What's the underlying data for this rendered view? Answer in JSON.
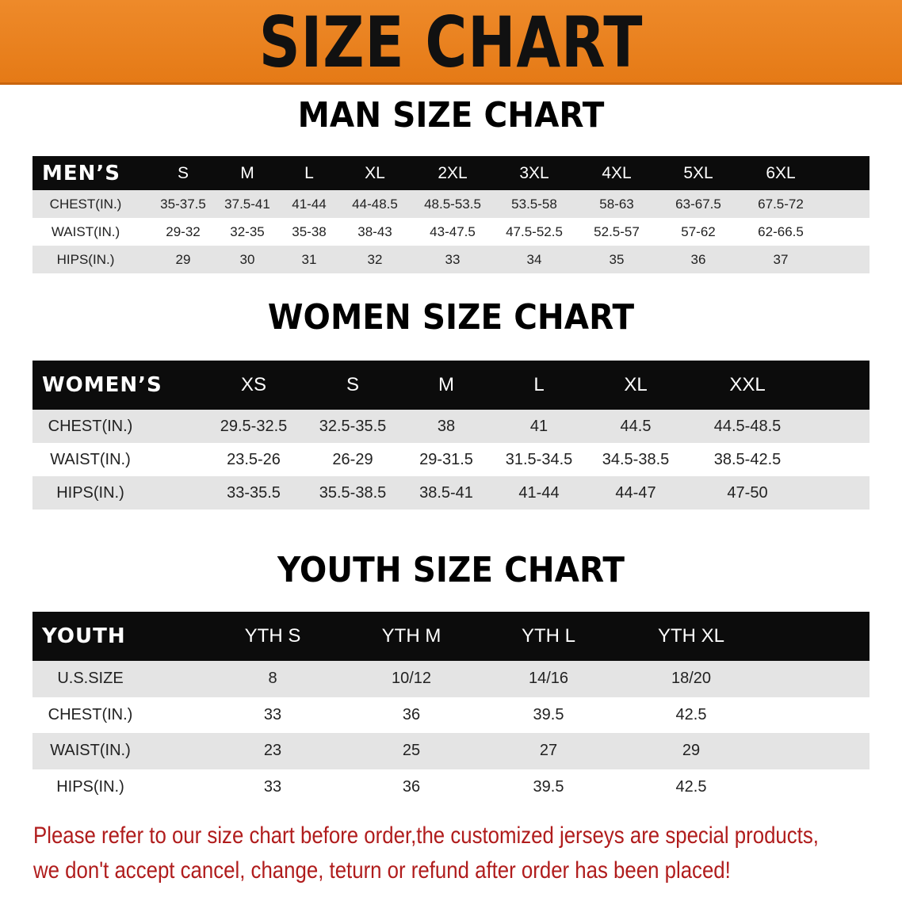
{
  "banner": {
    "title": "SIZE CHART",
    "color": "#e8801d"
  },
  "men": {
    "title": "MAN SIZE CHART",
    "header_label": "MEN’S",
    "sizes": [
      "S",
      "M",
      "L",
      "XL",
      "2XL",
      "3XL",
      "4XL",
      "5XL",
      "6XL"
    ],
    "rows": [
      {
        "label": "CHEST(IN.)",
        "values": [
          "35-37.5",
          "37.5-41",
          "41-44",
          "44-48.5",
          "48.5-53.5",
          "53.5-58",
          "58-63",
          "63-67.5",
          "67.5-72"
        ]
      },
      {
        "label": "WAIST(IN.)",
        "values": [
          "29-32",
          "32-35",
          "35-38",
          "38-43",
          "43-47.5",
          "47.5-52.5",
          "52.5-57",
          "57-62",
          "62-66.5"
        ]
      },
      {
        "label": "HIPS(IN.)",
        "values": [
          "29",
          "30",
          "31",
          "32",
          "33",
          "34",
          "35",
          "36",
          "37"
        ]
      }
    ]
  },
  "women": {
    "title": "WOMEN SIZE CHART",
    "header_label": "WOMEN’S",
    "sizes": [
      "XS",
      "S",
      "M",
      "L",
      "XL",
      "XXL"
    ],
    "rows": [
      {
        "label": "CHEST(IN.)",
        "values": [
          "29.5-32.5",
          "32.5-35.5",
          "38",
          "41",
          "44.5",
          "44.5-48.5"
        ]
      },
      {
        "label": "WAIST(IN.)",
        "values": [
          "23.5-26",
          "26-29",
          "29-31.5",
          "31.5-34.5",
          "34.5-38.5",
          "38.5-42.5"
        ]
      },
      {
        "label": "HIPS(IN.)",
        "values": [
          "33-35.5",
          "35.5-38.5",
          "38.5-41",
          "41-44",
          "44-47",
          "47-50"
        ]
      }
    ]
  },
  "youth": {
    "title": "YOUTH SIZE CHART",
    "header_label": "YOUTH",
    "sizes": [
      "YTH S",
      "YTH M",
      "YTH L",
      "YTH XL"
    ],
    "rows": [
      {
        "label": "U.S.SIZE",
        "values": [
          "8",
          "10/12",
          "14/16",
          "18/20"
        ]
      },
      {
        "label": "CHEST(IN.)",
        "values": [
          "33",
          "36",
          "39.5",
          "42.5"
        ]
      },
      {
        "label": "WAIST(IN.)",
        "values": [
          "23",
          "25",
          "27",
          "29"
        ]
      },
      {
        "label": "HIPS(IN.)",
        "values": [
          "33",
          "36",
          "39.5",
          "42.5"
        ]
      }
    ]
  },
  "notice": {
    "line1": "Please refer to our size chart before order,the customized jerseys are special products,",
    "line2": "we don't accept cancel, change, teturn or refund after order has been placed!",
    "color": "#b01c1c"
  }
}
